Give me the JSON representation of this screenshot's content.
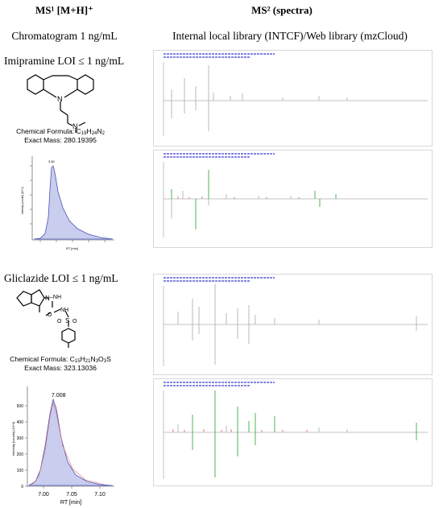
{
  "headers": {
    "ms1": "MS¹ [M+H]⁺",
    "ms2": "MS² (spectra)",
    "chromatogram": "Chromatogram 1 ng/mL",
    "library": "Internal local library (INTCF)/Web library (mzCloud)"
  },
  "compounds": [
    {
      "label": "Imipramine LOI ≤ 1 ng/mL",
      "formula_prefix": "Chemical Formula: C",
      "formula_c": "19",
      "formula_h_label": "H",
      "formula_h": "24",
      "formula_n_label": "N",
      "formula_n": "2",
      "mass": "Exact Mass: 280.19395",
      "chrom_peak_label": "3.80",
      "chrom_xlabel": "RT [min]",
      "chrom_ylabel": "Intensity [counts] (10^4)"
    },
    {
      "label": "Gliclazide LOI ≤ 1 ng/mL",
      "formula_prefix": "Chemical Formula: C",
      "formula_c": "15",
      "formula_h_label": "H",
      "formula_h": "21",
      "formula_n_label": "N",
      "formula_n": "3",
      "formula_o_label": "O",
      "formula_o": "3",
      "formula_s_label": "S",
      "mass": "Exact Mass: 323.13036",
      "chrom_peak_label": "7.008",
      "chrom_xlabel": "RT [min]",
      "chrom_ylabel": "Intensity [counts] (10^3)",
      "chrom_xticks": [
        "7.00",
        "7.05",
        "7.10"
      ],
      "chrom_yticks": [
        "0",
        "100",
        "200",
        "300",
        "400",
        "500"
      ]
    }
  ],
  "colors": {
    "library_peaks": "#a8a8a8",
    "matched_peaks": "#3cae3c",
    "noise_peaks": "#d24a4a",
    "chrom_fill": "#c9cdee",
    "chrom_line": "#4a55b8",
    "fit_line": "#e07070",
    "spectrum_header": "#3a3ad0"
  }
}
